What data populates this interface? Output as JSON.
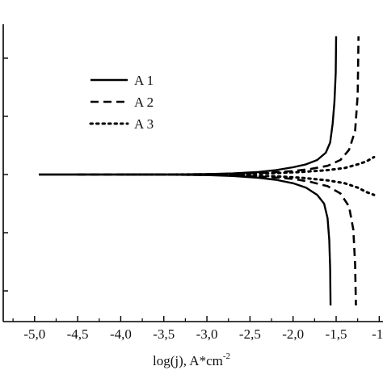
{
  "chart_data": {
    "type": "line",
    "title": "",
    "xlabel": "log(j), A*cm",
    "xlabel_superscript": "-2",
    "ylabel": "",
    "xlim": [
      -5.12,
      -1.05
    ],
    "ylim": [
      -1.0,
      1.0
    ],
    "x_ticks": [
      -5.0,
      -4.5,
      -4.0,
      -3.5,
      -3.0,
      -2.5,
      -2.0,
      -1.5,
      -1.0
    ],
    "x_tick_labels": [
      "-5,0",
      "-4,5",
      "-4,0",
      "-3,5",
      "-3,0",
      "-2,5",
      "-2,0",
      "-1,5",
      "-1,"
    ],
    "y_ticks": [
      -0.8,
      -0.4,
      0.0,
      0.4,
      0.8
    ],
    "legend_position": "top-left",
    "grid": false,
    "series": [
      {
        "name": "A 1",
        "style": "solid",
        "upper": {
          "x": [
            -4.95,
            -4.5,
            -4.0,
            -3.5,
            -3.0,
            -2.7,
            -2.4,
            -2.2,
            -2.0,
            -1.85,
            -1.72,
            -1.62,
            -1.57,
            -1.54,
            -1.52,
            -1.505,
            -1.5
          ],
          "y": [
            0.0,
            0.0,
            0.0,
            0.0,
            0.003,
            0.008,
            0.018,
            0.03,
            0.05,
            0.07,
            0.1,
            0.15,
            0.22,
            0.35,
            0.5,
            0.7,
            0.95
          ]
        },
        "lower": {
          "x": [
            -4.95,
            -4.5,
            -4.0,
            -3.5,
            -3.0,
            -2.7,
            -2.4,
            -2.2,
            -2.0,
            -1.85,
            -1.72,
            -1.64,
            -1.6,
            -1.58,
            -1.57,
            -1.565
          ],
          "y": [
            0.0,
            0.0,
            0.0,
            0.0,
            -0.004,
            -0.01,
            -0.022,
            -0.036,
            -0.06,
            -0.09,
            -0.14,
            -0.2,
            -0.3,
            -0.45,
            -0.65,
            -0.9
          ]
        }
      },
      {
        "name": "A 2",
        "style": "dashed",
        "upper": {
          "x": [
            -4.5,
            -4.0,
            -3.5,
            -3.0,
            -2.6,
            -2.3,
            -2.0,
            -1.8,
            -1.6,
            -1.45,
            -1.35,
            -1.28,
            -1.25,
            -1.24
          ],
          "y": [
            0.0,
            0.0,
            0.0,
            0.002,
            0.006,
            0.012,
            0.024,
            0.038,
            0.06,
            0.1,
            0.17,
            0.3,
            0.55,
            0.95
          ]
        },
        "lower": {
          "x": [
            -4.5,
            -4.0,
            -3.5,
            -3.0,
            -2.6,
            -2.3,
            -2.0,
            -1.8,
            -1.6,
            -1.45,
            -1.35,
            -1.3,
            -1.28,
            -1.27
          ],
          "y": [
            0.0,
            0.0,
            0.0,
            -0.003,
            -0.008,
            -0.016,
            -0.03,
            -0.05,
            -0.08,
            -0.13,
            -0.22,
            -0.38,
            -0.62,
            -0.9
          ]
        }
      },
      {
        "name": "A 3",
        "style": "dotted",
        "upper": {
          "x": [
            -4.0,
            -3.5,
            -3.0,
            -2.6,
            -2.2,
            -1.9,
            -1.6,
            -1.4,
            -1.25,
            -1.15,
            -1.06
          ],
          "y": [
            0.0,
            0.0,
            0.001,
            0.004,
            0.01,
            0.018,
            0.03,
            0.045,
            0.07,
            0.09,
            0.12
          ]
        },
        "lower": {
          "x": [
            -4.0,
            -3.5,
            -3.0,
            -2.6,
            -2.2,
            -1.9,
            -1.6,
            -1.4,
            -1.25,
            -1.15,
            -1.06
          ],
          "y": [
            0.0,
            0.0,
            -0.001,
            -0.005,
            -0.012,
            -0.022,
            -0.04,
            -0.06,
            -0.09,
            -0.12,
            -0.14
          ]
        }
      }
    ]
  }
}
